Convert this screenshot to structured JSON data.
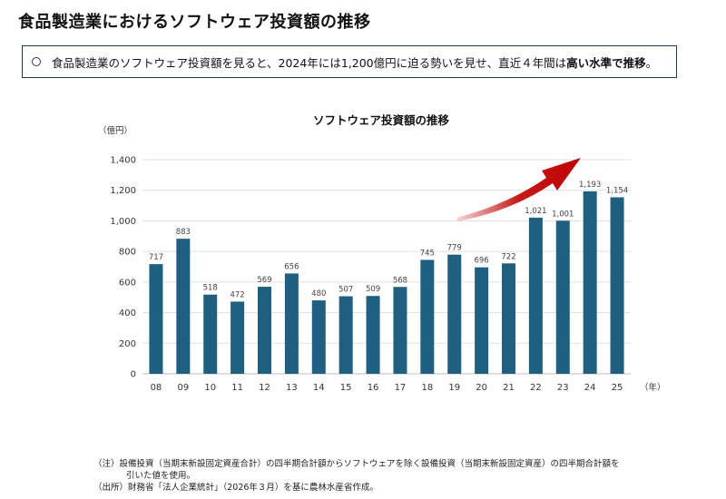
{
  "page": {
    "title": "食品製造業におけるソフトウェア投資額の推移",
    "summary_pre": "食品製造業のソフトウェア投資額を見ると、2024年には1,200億円に迫る勢いを見せ、直近４年間は",
    "summary_bold": "高い水準で推移",
    "summary_post": "。"
  },
  "notes": {
    "line1": "（注）設備投資（当期末新設固定資産合計）の四半期合計額からソフトウェアを除く設備投資（当期末新設固定資産）の四半期合計額を",
    "line2": "引いた値を使用。",
    "line3": "（出所）財務省「法人企業統計」（2026年３月）を基に農林水産省作成。"
  },
  "chart_data": {
    "type": "bar",
    "title": "ソフトウェア投資額の推移",
    "ylabel": "（億円）",
    "xlabel": "（年）",
    "categories": [
      "08",
      "09",
      "10",
      "11",
      "12",
      "13",
      "14",
      "15",
      "16",
      "17",
      "18",
      "19",
      "20",
      "21",
      "22",
      "23",
      "24",
      "25"
    ],
    "values": [
      717,
      883,
      518,
      472,
      569,
      656,
      480,
      507,
      509,
      568,
      745,
      779,
      696,
      722,
      1021,
      1001,
      1193,
      1154
    ],
    "value_labels": [
      "717",
      "883",
      "518",
      "472",
      "569",
      "656",
      "480",
      "507",
      "509",
      "568",
      "745",
      "779",
      "696",
      "722",
      "1,021",
      "1,001",
      "1,193",
      "1,154"
    ],
    "ylim": [
      0,
      1400
    ],
    "yticks": [
      "0",
      "200",
      "400",
      "600",
      "800",
      "1,000",
      "1,200",
      "1,400"
    ],
    "ytick_values": [
      0,
      200,
      400,
      600,
      800,
      1000,
      1200,
      1400
    ],
    "grid": true,
    "bar_color": "#1f5f7f",
    "arrow_color": "#c00000"
  }
}
